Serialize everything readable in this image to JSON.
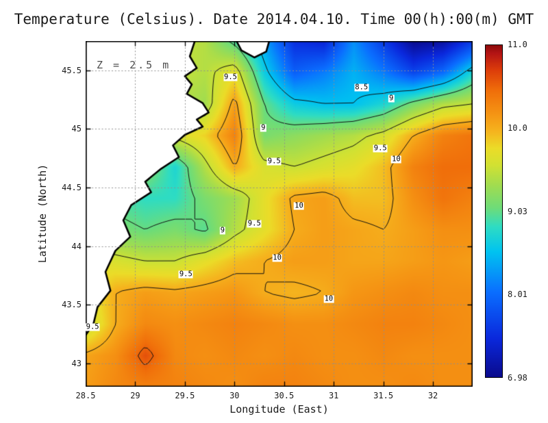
{
  "title": "Temperature (Celsius). Date 2014.04.10. Time 00(h):00(m) GMT",
  "annotation": "Z = 2.5 m",
  "axes": {
    "x": {
      "label": "Longitude (East)",
      "range": [
        28.5,
        32.4
      ],
      "tick_values": [
        28.5,
        29,
        29.5,
        30,
        30.5,
        31,
        31.5,
        32
      ],
      "tick_labels": [
        "28.5",
        "29",
        "29.5",
        "30",
        "30.5",
        "31",
        "31.5",
        "32"
      ]
    },
    "y": {
      "label": "Latitude (North)",
      "range": [
        42.8,
        45.75
      ],
      "tick_values": [
        43,
        43.5,
        44,
        44.5,
        45,
        45.5
      ],
      "tick_labels": [
        "43",
        "43.5",
        "44",
        "44.5",
        "45",
        "45.5"
      ]
    }
  },
  "colorbar": {
    "min": 6.98,
    "max": 11.0,
    "tick_labels": [
      "11.0",
      "10.0",
      "9.03",
      "8.01",
      "6.98"
    ]
  },
  "colors": {
    "land": "#ffffff",
    "coastline": "#000000",
    "contour": "#111111",
    "gridline": "#8f8f8f",
    "frame": "#000000",
    "text": "#1a1a1a",
    "annotation_text": "#4d4d4d",
    "background": "#ffffff"
  },
  "chart_data": {
    "type": "heatmap",
    "title": "Temperature (Celsius). Date 2014.04.10. Time 00(h):00(m) GMT",
    "xlabel": "Longitude (East)",
    "ylabel": "Latitude (North)",
    "units": "Celsius",
    "depth_annotation": "Z = 2.5 m",
    "x_range": [
      28.5,
      32.4
    ],
    "y_range": [
      42.8,
      45.75
    ],
    "lon": [
      28.5,
      28.8,
      29.1,
      29.4,
      29.7,
      30.0,
      30.3,
      30.6,
      30.9,
      31.2,
      31.5,
      31.8,
      32.1,
      32.4
    ],
    "lat": [
      45.75,
      45.48,
      45.21,
      44.94,
      44.67,
      44.4,
      44.13,
      43.86,
      43.59,
      43.32,
      43.05,
      42.8
    ],
    "temperature_c": [
      [
        9.5,
        9.5,
        9.5,
        9.5,
        9.4,
        8.9,
        8.3,
        7.5,
        7.4,
        8.2,
        7.6,
        7.0,
        7.1,
        7.6
      ],
      [
        9.5,
        9.5,
        9.5,
        9.5,
        9.4,
        9.7,
        8.6,
        7.9,
        8.1,
        8.4,
        8.1,
        7.7,
        8.0,
        8.7
      ],
      [
        9.5,
        9.5,
        9.5,
        9.4,
        9.3,
        10.1,
        9.0,
        8.6,
        8.5,
        8.5,
        8.7,
        9.1,
        9.4,
        9.5
      ],
      [
        9.5,
        9.5,
        9.5,
        9.6,
        9.8,
        10.3,
        9.1,
        9.2,
        9.3,
        9.4,
        9.6,
        10.0,
        10.3,
        10.4
      ],
      [
        9.4,
        9.4,
        9.2,
        8.7,
        9.4,
        10.0,
        9.6,
        9.5,
        9.6,
        9.7,
        9.9,
        10.3,
        10.45,
        10.45
      ],
      [
        8.9,
        8.9,
        8.8,
        8.8,
        9.1,
        9.3,
        9.7,
        10.05,
        10.1,
        9.9,
        9.9,
        10.2,
        10.4,
        10.3
      ],
      [
        9.3,
        9.1,
        9.0,
        9.1,
        8.95,
        9.4,
        9.7,
        10.0,
        10.1,
        10.05,
        10.0,
        10.1,
        10.2,
        10.2
      ],
      [
        9.7,
        9.6,
        9.5,
        9.5,
        9.7,
        9.9,
        10.0,
        10.1,
        10.1,
        10.05,
        10.05,
        10.1,
        10.15,
        10.1
      ],
      [
        9.6,
        10.0,
        10.1,
        10.05,
        10.1,
        10.15,
        10.0,
        9.95,
        10.0,
        10.15,
        10.2,
        10.25,
        10.2,
        10.2
      ],
      [
        9.45,
        10.0,
        10.25,
        10.2,
        10.25,
        10.3,
        10.25,
        10.2,
        10.2,
        10.25,
        10.3,
        10.3,
        10.25,
        10.2
      ],
      [
        10.05,
        10.2,
        10.6,
        10.25,
        10.2,
        10.25,
        10.2,
        10.25,
        10.2,
        10.2,
        10.25,
        10.2,
        10.2,
        10.2
      ],
      [
        10.1,
        10.25,
        10.3,
        10.3,
        10.25,
        10.2,
        10.3,
        10.3,
        10.25,
        10.2,
        10.2,
        10.25,
        10.2,
        10.2
      ]
    ],
    "contour_levels": [
      8.5,
      9,
      9.5,
      10,
      10.5
    ],
    "contour_labels": [
      {
        "text": "9.5",
        "lon": 29.96,
        "lat": 45.44
      },
      {
        "text": "8.5",
        "lon": 31.28,
        "lat": 45.35
      },
      {
        "text": "9",
        "lon": 31.58,
        "lat": 45.26
      },
      {
        "text": "9",
        "lon": 30.29,
        "lat": 45.01
      },
      {
        "text": "9.5",
        "lon": 30.4,
        "lat": 44.72
      },
      {
        "text": "9.5",
        "lon": 31.47,
        "lat": 44.83
      },
      {
        "text": "10",
        "lon": 31.63,
        "lat": 44.74
      },
      {
        "text": "10",
        "lon": 30.65,
        "lat": 44.34
      },
      {
        "text": "9.5",
        "lon": 30.2,
        "lat": 44.19
      },
      {
        "text": "9",
        "lon": 29.88,
        "lat": 44.13
      },
      {
        "text": "10",
        "lon": 30.43,
        "lat": 43.9
      },
      {
        "text": "9.5",
        "lon": 29.51,
        "lat": 43.76
      },
      {
        "text": "10",
        "lon": 30.95,
        "lat": 43.55
      },
      {
        "text": "9.5",
        "lon": 28.57,
        "lat": 43.31
      }
    ],
    "colormap": [
      {
        "t": 6.98,
        "c": "#0A0A8C"
      },
      {
        "t": 7.45,
        "c": "#0A28DC"
      },
      {
        "t": 8.01,
        "c": "#0A6EFF"
      },
      {
        "t": 8.5,
        "c": "#00C3F0"
      },
      {
        "t": 8.8,
        "c": "#2EDCC3"
      },
      {
        "t": 9.03,
        "c": "#6EDC78"
      },
      {
        "t": 9.3,
        "c": "#A0DC50"
      },
      {
        "t": 9.55,
        "c": "#D2E132"
      },
      {
        "t": 9.75,
        "c": "#EBDC28"
      },
      {
        "t": 9.95,
        "c": "#F5B41E"
      },
      {
        "t": 10.15,
        "c": "#F59614"
      },
      {
        "t": 10.45,
        "c": "#F06E0A"
      },
      {
        "t": 10.7,
        "c": "#DC3C0A"
      },
      {
        "t": 10.9,
        "c": "#B41414"
      },
      {
        "t": 11.0,
        "c": "#8C0A0A"
      }
    ],
    "colorbar": {
      "min": 6.98,
      "max": 11.0,
      "tick_labels": [
        "11.0",
        "10.0",
        "9.03",
        "8.01",
        "6.98"
      ]
    },
    "coastline": [
      [
        29.6,
        45.75
      ],
      [
        29.55,
        45.62
      ],
      [
        29.62,
        45.52
      ],
      [
        29.5,
        45.45
      ],
      [
        29.57,
        45.38
      ],
      [
        29.52,
        45.3
      ],
      [
        29.68,
        45.22
      ],
      [
        29.74,
        45.14
      ],
      [
        29.62,
        45.08
      ],
      [
        29.68,
        45.02
      ],
      [
        29.5,
        44.95
      ],
      [
        29.38,
        44.86
      ],
      [
        29.44,
        44.76
      ],
      [
        29.26,
        44.66
      ],
      [
        29.1,
        44.55
      ],
      [
        29.16,
        44.46
      ],
      [
        28.96,
        44.35
      ],
      [
        28.88,
        44.22
      ],
      [
        28.95,
        44.08
      ],
      [
        28.8,
        43.96
      ],
      [
        28.7,
        43.78
      ],
      [
        28.75,
        43.62
      ],
      [
        28.62,
        43.48
      ],
      [
        28.58,
        43.34
      ],
      [
        28.5,
        43.24
      ]
    ],
    "land_patch_north": [
      [
        30.02,
        45.75
      ],
      [
        30.07,
        45.67
      ],
      [
        30.2,
        45.61
      ],
      [
        30.32,
        45.66
      ],
      [
        30.35,
        45.75
      ]
    ]
  }
}
